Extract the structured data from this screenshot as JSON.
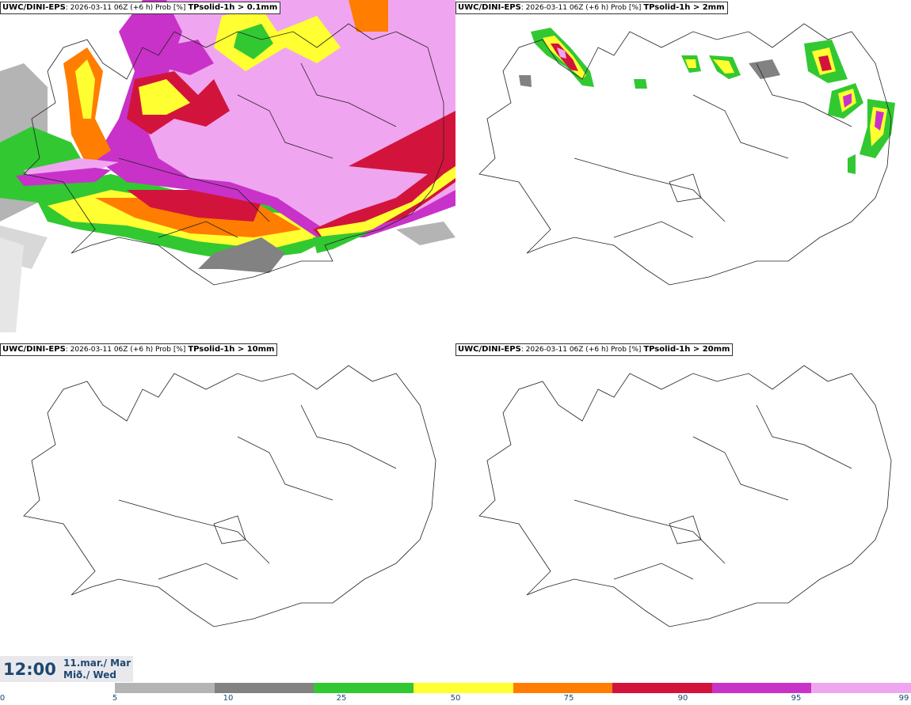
{
  "panels": [
    {
      "model": "UWC/DINI-EPS",
      "info": ": 2026-03-11 06Z (+6 h) Prob [%] ",
      "variable": "TPsolid-1h > 0.1mm"
    },
    {
      "model": "UWC/DINI-EPS",
      "info": ": 2026-03-11 06Z (+6 h) Prob [%] ",
      "variable": "TPsolid-1h > 2mm"
    },
    {
      "model": "UWC/DINI-EPS",
      "info": ": 2026-03-11 06Z (+6 h) Prob [%] ",
      "variable": "TPsolid-1h > 10mm"
    },
    {
      "model": "UWC/DINI-EPS",
      "info": ": 2026-03-11 06Z (+6 h) Prob [%] ",
      "variable": "TPsolid-1h > 20mm"
    }
  ],
  "time": "12:00",
  "date_line1": "11.mar./ Mar",
  "date_line2": "Mið./ Wed",
  "colorbar": {
    "ticks": [
      "0",
      "5",
      "10",
      "25",
      "50",
      "75",
      "90",
      "95",
      "99"
    ],
    "colors": [
      "#ffffff",
      "#b4b4b4",
      "#828282",
      "#32c832",
      "#ffff32",
      "#ff7d00",
      "#d2143c",
      "#c832c8",
      "#f0a5f0"
    ]
  }
}
